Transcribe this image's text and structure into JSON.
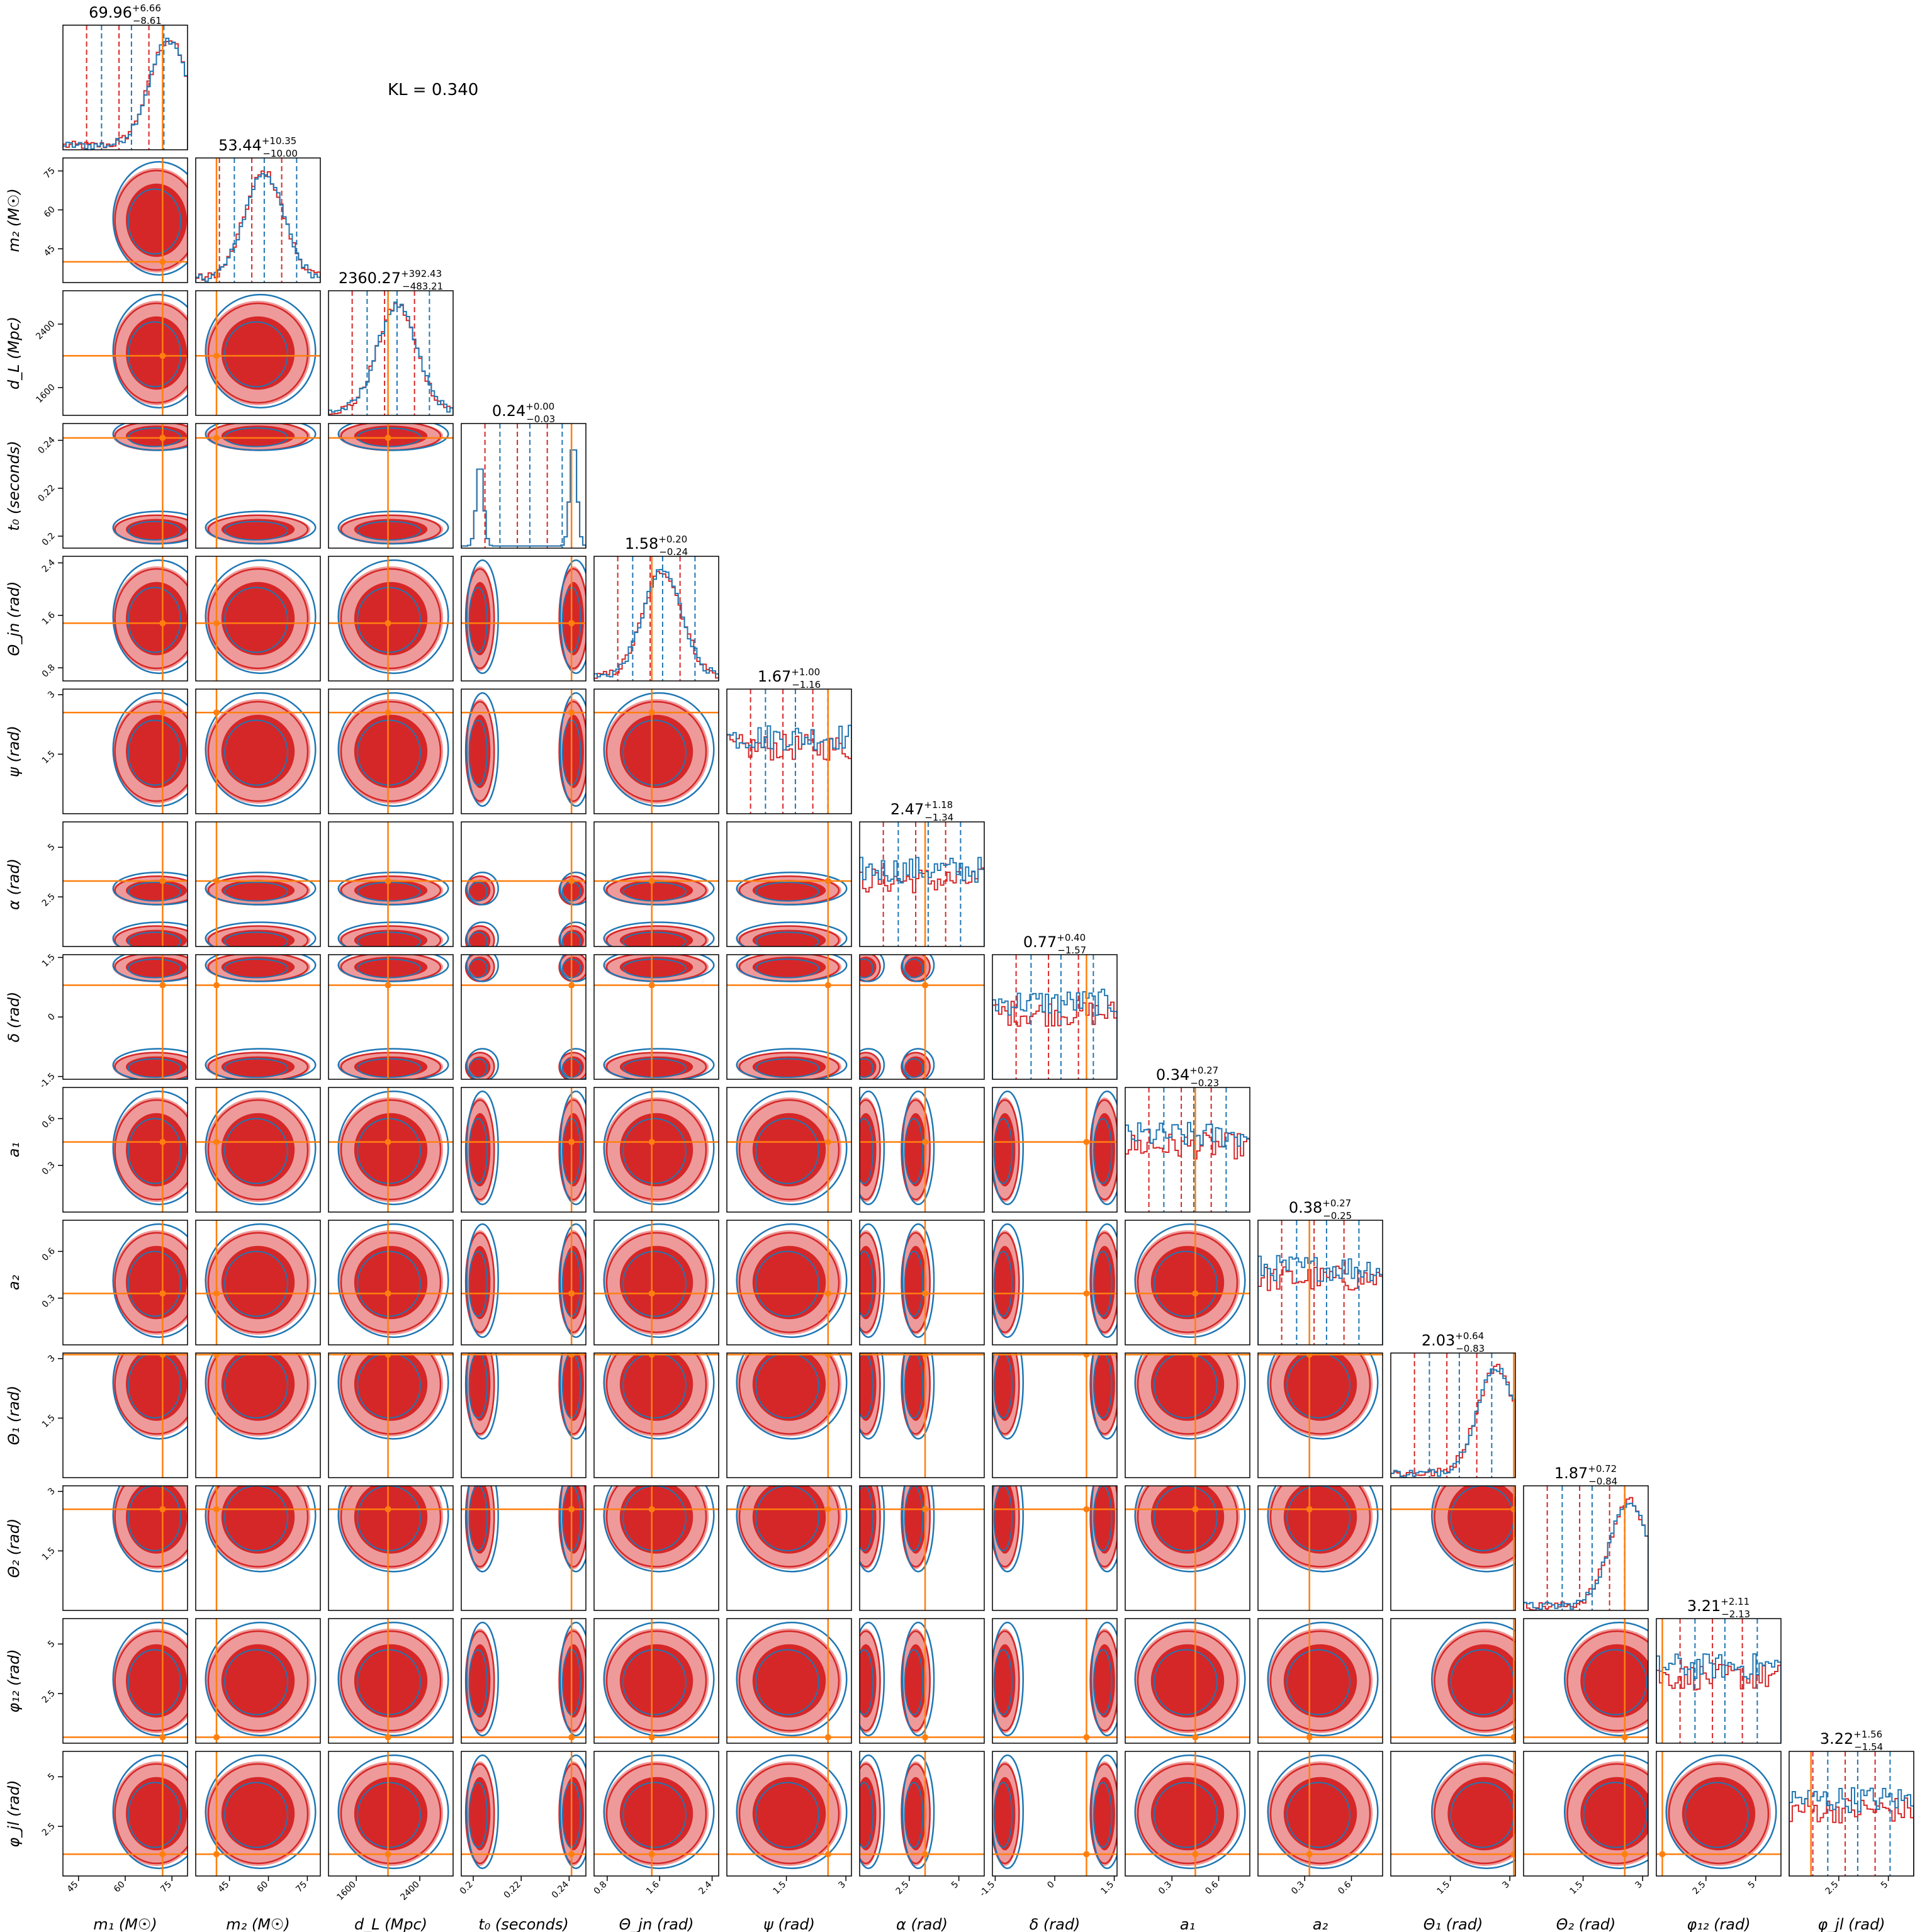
{
  "annotation": {
    "kl_text": "KL = 0.340"
  },
  "colors": {
    "red": "#d62728",
    "red_light": "#ee9a9a",
    "blue": "#1f77b4",
    "truth": "#ff7f0e"
  },
  "chart_data": {
    "type": "corner",
    "parameters": [
      {
        "label": "m₁ (M☉)",
        "range": [
          40,
          80
        ],
        "ticks": [
          45,
          60,
          75
        ],
        "truth": 72,
        "summary": {
          "median": "69.96",
          "plus": "+6.66",
          "minus": "−8.61"
        }
      },
      {
        "label": "m₂ (M☉)",
        "range": [
          32,
          80
        ],
        "ticks": [
          45,
          60,
          75
        ],
        "truth": 40,
        "summary": {
          "median": "53.44",
          "plus": "+10.35",
          "minus": "−10.00"
        }
      },
      {
        "label": "d_L (Mpc)",
        "range": [
          1250,
          2820
        ],
        "ticks": [
          1600,
          2400
        ],
        "truth": 2000,
        "summary": {
          "median": "2360.27",
          "plus": "+392.43",
          "minus": "−483.21"
        }
      },
      {
        "label": "t₀ (seconds)",
        "range": [
          0.195,
          0.247
        ],
        "ticks": [
          0.2,
          0.22,
          0.24
        ],
        "truth": 0.241,
        "summary": {
          "median": "0.24",
          "plus": "+0.00",
          "minus": "−0.03"
        }
      },
      {
        "label": "Θ_jn (rad)",
        "range": [
          0.6,
          2.5
        ],
        "ticks": [
          0.8,
          1.6,
          2.4
        ],
        "truth": 1.48,
        "summary": {
          "median": "1.58",
          "plus": "+0.20",
          "minus": "−0.24"
        }
      },
      {
        "label": "ψ (rad)",
        "range": [
          0,
          3.14
        ],
        "ticks": [
          1.5,
          3.0
        ],
        "truth": 2.55,
        "summary": {
          "median": "1.67",
          "plus": "+1.00",
          "minus": "−1.16"
        }
      },
      {
        "label": "α (rad)",
        "range": [
          0,
          6.28
        ],
        "ticks": [
          2.5,
          5.0
        ],
        "truth": 3.3,
        "summary": {
          "median": "2.47",
          "plus": "+1.18",
          "minus": "−1.34"
        }
      },
      {
        "label": "δ (rad)",
        "range": [
          -1.57,
          1.57
        ],
        "ticks": [
          -1.5,
          0.0,
          1.5
        ],
        "truth": 0.8,
        "summary": {
          "median": "0.77",
          "plus": "+0.40",
          "minus": "−1.57"
        }
      },
      {
        "label": "a₁",
        "range": [
          0,
          0.8
        ],
        "ticks": [
          0.3,
          0.6
        ],
        "truth": 0.45,
        "summary": {
          "median": "0.34",
          "plus": "+0.27",
          "minus": "−0.23"
        }
      },
      {
        "label": "a₂",
        "range": [
          0,
          0.8
        ],
        "ticks": [
          0.3,
          0.6
        ],
        "truth": 0.33,
        "summary": {
          "median": "0.38",
          "plus": "+0.27",
          "minus": "−0.25"
        }
      },
      {
        "label": "Θ₁ (rad)",
        "range": [
          0,
          3.14
        ],
        "ticks": [
          1.5,
          3.0
        ],
        "truth": 3.1,
        "summary": {
          "median": "2.03",
          "plus": "+0.64",
          "minus": "−0.83"
        }
      },
      {
        "label": "Θ₂ (rad)",
        "range": [
          0,
          3.14
        ],
        "ticks": [
          1.5,
          3.0
        ],
        "truth": 2.55,
        "summary": {
          "median": "1.87",
          "plus": "+0.72",
          "minus": "−0.84"
        }
      },
      {
        "label": "φ₁₂ (rad)",
        "range": [
          0,
          6.28
        ],
        "ticks": [
          2.5,
          5.0
        ],
        "truth": 0.3,
        "summary": {
          "median": "3.21",
          "plus": "+2.11",
          "minus": "−2.13"
        }
      },
      {
        "label": "φ_jl (rad)",
        "range": [
          0,
          6.28
        ],
        "ticks": [
          2.5,
          5.0
        ],
        "truth": 1.1,
        "summary": {
          "median": "3.22",
          "plus": "+1.56",
          "minus": "−1.54"
        }
      }
    ],
    "series": [
      {
        "color": "red",
        "style": "filled contours + step histogram"
      },
      {
        "color": "blue",
        "style": "contour lines + step histogram"
      }
    ],
    "truth_color": "orange"
  }
}
